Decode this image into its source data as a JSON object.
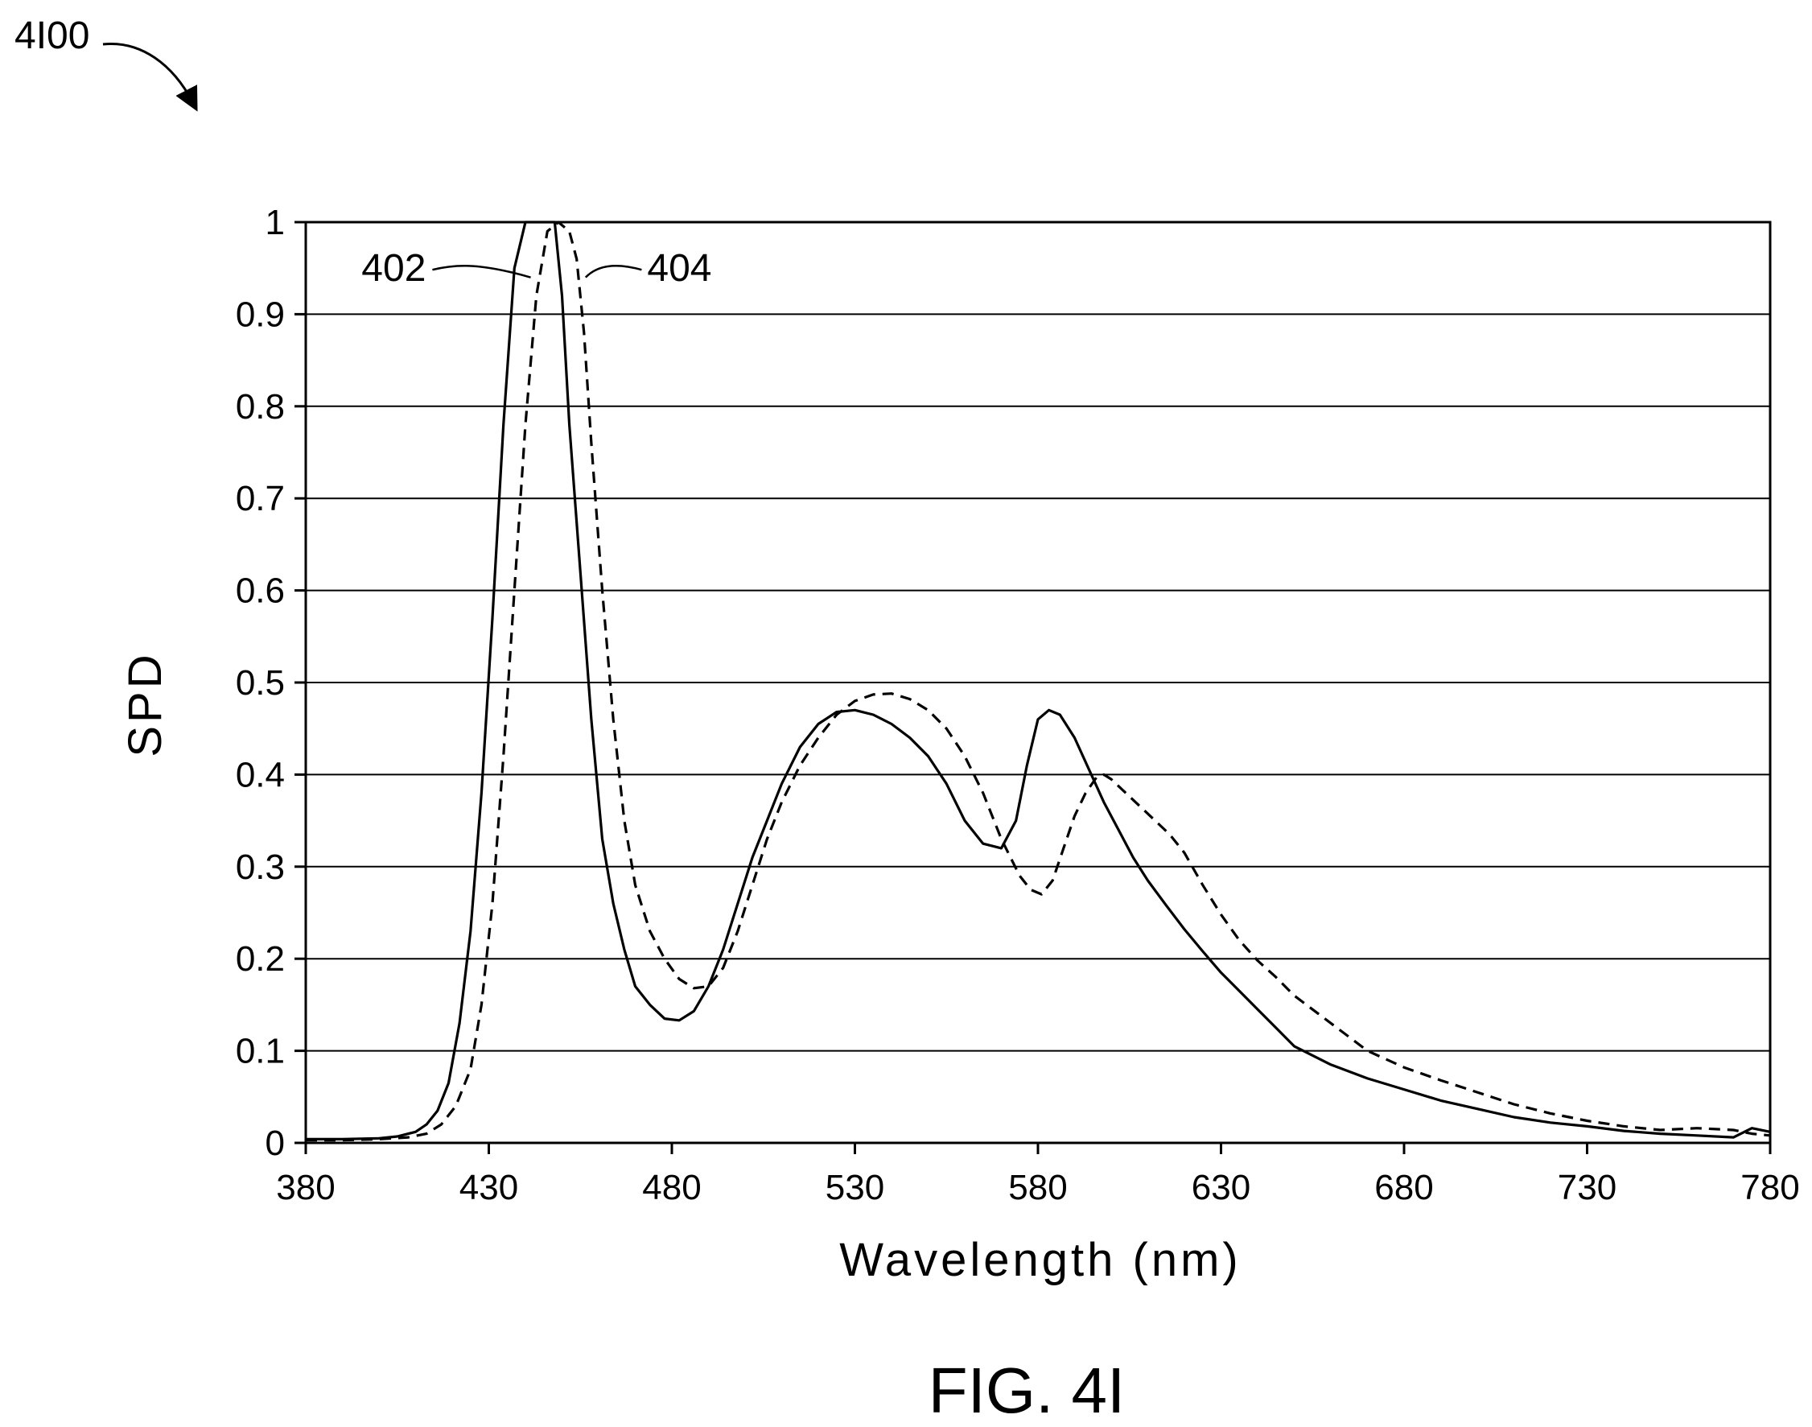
{
  "figure_ref": "4I00",
  "figure_caption": "FIG. 4I",
  "chart_data": {
    "type": "line",
    "title": "",
    "xlabel": "Wavelength (nm)",
    "ylabel": "SPD",
    "xlim": [
      380,
      780
    ],
    "ylim": [
      0,
      1
    ],
    "x_ticks": [
      380,
      430,
      480,
      530,
      580,
      630,
      680,
      730,
      780
    ],
    "y_ticks": [
      0,
      0.1,
      0.2,
      0.3,
      0.4,
      0.5,
      0.6,
      0.7,
      0.8,
      0.9,
      1
    ],
    "y_tick_labels": [
      "0",
      "0.1",
      "0.2",
      "0.3",
      "0.4",
      "0.5",
      "0.6",
      "0.7",
      "0.8",
      "0.9",
      "1"
    ],
    "grid": "horizontal",
    "legend": "none",
    "series": [
      {
        "label": "402",
        "style": "solid",
        "color": "#000000",
        "x": [
          380,
          390,
          400,
          405,
          410,
          413,
          416,
          419,
          422,
          425,
          428,
          431,
          434,
          437,
          440,
          443,
          445,
          448,
          450,
          452,
          455,
          458,
          461,
          464,
          467,
          470,
          474,
          478,
          482,
          486,
          490,
          494,
          498,
          502,
          506,
          510,
          515,
          520,
          525,
          530,
          535,
          540,
          545,
          550,
          555,
          560,
          565,
          570,
          574,
          577,
          580,
          583,
          586,
          590,
          594,
          598,
          602,
          606,
          610,
          615,
          620,
          625,
          630,
          635,
          640,
          645,
          650,
          660,
          670,
          680,
          690,
          700,
          710,
          720,
          730,
          740,
          750,
          760,
          770,
          775,
          780
        ],
        "y": [
          0.004,
          0.004,
          0.005,
          0.007,
          0.012,
          0.02,
          0.035,
          0.065,
          0.13,
          0.23,
          0.38,
          0.57,
          0.78,
          0.95,
          1.0,
          1.0,
          1.0,
          1.0,
          0.92,
          0.78,
          0.62,
          0.46,
          0.33,
          0.26,
          0.21,
          0.17,
          0.15,
          0.135,
          0.133,
          0.143,
          0.17,
          0.21,
          0.26,
          0.31,
          0.35,
          0.39,
          0.43,
          0.455,
          0.468,
          0.47,
          0.465,
          0.455,
          0.44,
          0.42,
          0.39,
          0.35,
          0.325,
          0.32,
          0.35,
          0.41,
          0.46,
          0.47,
          0.465,
          0.44,
          0.405,
          0.37,
          0.34,
          0.31,
          0.285,
          0.258,
          0.232,
          0.208,
          0.185,
          0.165,
          0.145,
          0.125,
          0.105,
          0.085,
          0.07,
          0.058,
          0.046,
          0.037,
          0.028,
          0.022,
          0.018,
          0.013,
          0.01,
          0.008,
          0.006,
          0.016,
          0.012
        ]
      },
      {
        "label": "404",
        "style": "dashed",
        "color": "#000000",
        "x": [
          380,
          390,
          400,
          408,
          413,
          417,
          421,
          425,
          428,
          431,
          434,
          437,
          440,
          443,
          446,
          449,
          452,
          454,
          456,
          458,
          461,
          464,
          467,
          470,
          474,
          478,
          482,
          486,
          490,
          494,
          498,
          502,
          506,
          510,
          515,
          520,
          525,
          530,
          535,
          540,
          545,
          550,
          555,
          560,
          565,
          570,
          575,
          578,
          581,
          584,
          587,
          590,
          593,
          596,
          598,
          600,
          604,
          608,
          612,
          616,
          620,
          625,
          630,
          635,
          640,
          645,
          650,
          660,
          670,
          680,
          690,
          700,
          710,
          720,
          730,
          740,
          750,
          760,
          770,
          775,
          780
        ],
        "y": [
          0.003,
          0.003,
          0.004,
          0.006,
          0.01,
          0.02,
          0.04,
          0.08,
          0.15,
          0.26,
          0.42,
          0.6,
          0.78,
          0.92,
          0.99,
          1.0,
          0.99,
          0.96,
          0.88,
          0.76,
          0.6,
          0.46,
          0.35,
          0.28,
          0.23,
          0.2,
          0.178,
          0.168,
          0.17,
          0.19,
          0.23,
          0.28,
          0.33,
          0.37,
          0.41,
          0.44,
          0.465,
          0.48,
          0.487,
          0.488,
          0.482,
          0.47,
          0.45,
          0.42,
          0.38,
          0.33,
          0.29,
          0.275,
          0.27,
          0.285,
          0.32,
          0.355,
          0.38,
          0.397,
          0.4,
          0.395,
          0.38,
          0.365,
          0.35,
          0.335,
          0.315,
          0.28,
          0.248,
          0.22,
          0.198,
          0.18,
          0.16,
          0.13,
          0.1,
          0.082,
          0.068,
          0.055,
          0.042,
          0.032,
          0.024,
          0.018,
          0.014,
          0.016,
          0.014,
          0.01,
          0.008
        ]
      }
    ]
  }
}
